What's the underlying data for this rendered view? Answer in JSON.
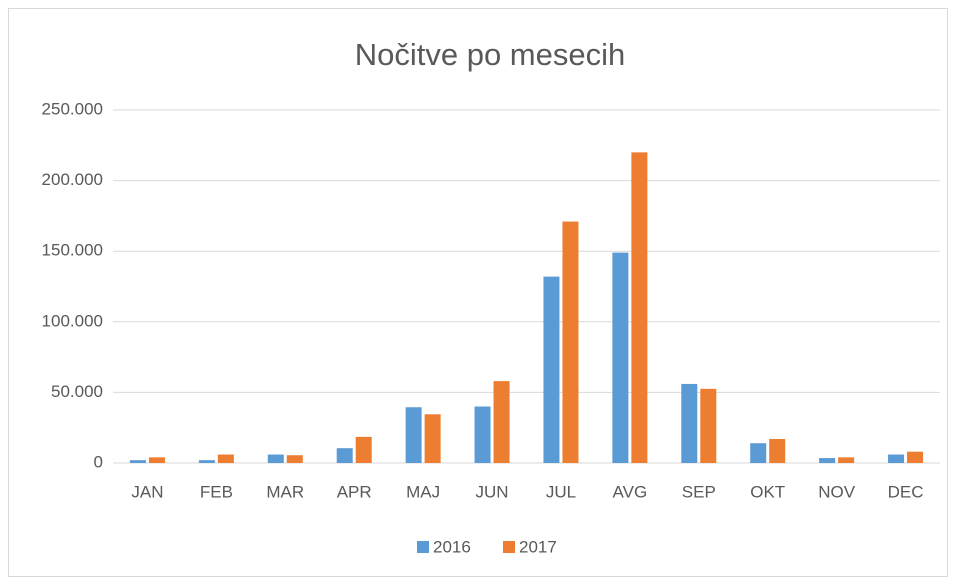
{
  "chart_data": {
    "type": "bar",
    "title": "Nočitve po mesecih",
    "categories": [
      "JAN",
      "FEB",
      "MAR",
      "APR",
      "MAJ",
      "JUN",
      "JUL",
      "AVG",
      "SEP",
      "OKT",
      "NOV",
      "DEC"
    ],
    "series": [
      {
        "name": "2016",
        "color": "#5b9bd5",
        "values": [
          2000,
          2000,
          6000,
          10500,
          39500,
          40000,
          132000,
          149000,
          56000,
          14000,
          3500,
          6000
        ]
      },
      {
        "name": "2017",
        "color": "#ed7d31",
        "values": [
          4000,
          6000,
          5500,
          18500,
          34500,
          58000,
          171000,
          220000,
          52500,
          17000,
          4000,
          8000
        ]
      }
    ],
    "ylim": [
      0,
      250000
    ],
    "yticks": [
      0,
      {
        "value": 50000,
        "label": "50.000"
      },
      {
        "value": 100000,
        "label": "100.000"
      },
      {
        "value": 150000,
        "label": "150.000"
      },
      {
        "value": 200000,
        "label": "200.000"
      },
      {
        "value": 250000,
        "label": "250.000"
      }
    ],
    "grid": true,
    "legend": "bottom"
  }
}
